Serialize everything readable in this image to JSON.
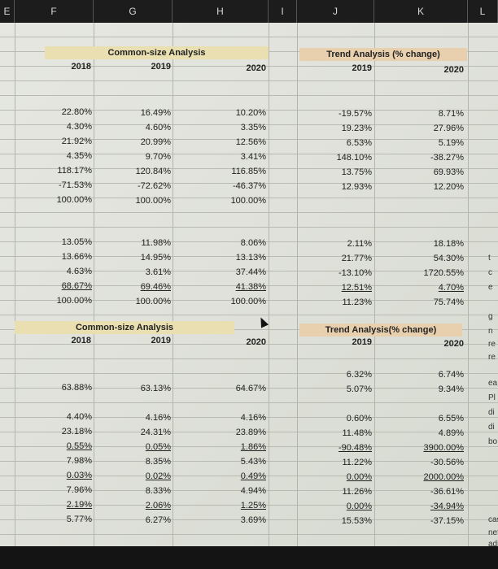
{
  "column_headers": [
    "E",
    "F",
    "G",
    "H",
    "I",
    "J",
    "K",
    "L"
  ],
  "section1": {
    "common_size_title": "Common-size Analysis",
    "trend_title": "Trend Analysis (% change)",
    "cs_years": [
      "2018",
      "2019",
      "2020"
    ],
    "trend_years": [
      "2019",
      "2020"
    ]
  },
  "section2": {
    "common_size_title": "Common-size Analysis",
    "trend_title": "Trend Analysis(% change)",
    "cs_years": [
      "2018",
      "2019",
      "2020"
    ],
    "trend_years": [
      "2019",
      "2020"
    ]
  },
  "rows_block1": [
    {
      "cells": [
        "22.80%",
        "16.49%",
        "10.20%",
        "-19.57%",
        "8.71%"
      ]
    },
    {
      "cells": [
        "4.30%",
        "4.60%",
        "3.35%",
        "19.23%",
        "27.96%"
      ]
    },
    {
      "cells": [
        "21.92%",
        "20.99%",
        "12.56%",
        "6.53%",
        "5.19%"
      ]
    },
    {
      "cells": [
        "4.35%",
        "9.70%",
        "3.41%",
        "148.10%",
        "-38.27%"
      ]
    },
    {
      "cells": [
        "118.17%",
        "120.84%",
        "116.85%",
        "13.75%",
        "69.93%"
      ]
    },
    {
      "cells": [
        "-71.53%",
        "-72.62%",
        "-46.37%",
        "12.93%",
        "12.20%"
      ]
    },
    {
      "cells": [
        "100.00%",
        "100.00%",
        "100.00%",
        "",
        ""
      ]
    }
  ],
  "rows_block2": [
    {
      "cells": [
        "13.05%",
        "11.98%",
        "8.06%",
        "2.11%",
        "18.18%"
      ]
    },
    {
      "cells": [
        "13.66%",
        "14.95%",
        "13.13%",
        "21.77%",
        "54.30%"
      ]
    },
    {
      "cells": [
        "4.63%",
        "3.61%",
        "37.44%",
        "-13.10%",
        "1720.55%"
      ]
    },
    {
      "cells": [
        "68.67%",
        "69.46%",
        "41.38%",
        "12.51%",
        "4.70%"
      ],
      "underlined": true
    },
    {
      "cells": [
        "100.00%",
        "100.00%",
        "100.00%",
        "11.23%",
        "75.74%"
      ]
    }
  ],
  "rows_block3": [
    {
      "cells": [
        "",
        "",
        "",
        "6.32%",
        "6.74%"
      ]
    },
    {
      "cells": [
        "63.88%",
        "63.13%",
        "64.67%",
        "5.07%",
        "9.34%"
      ]
    }
  ],
  "rows_block4": [
    {
      "cells": [
        "4.40%",
        "4.16%",
        "4.16%",
        "0.60%",
        "6.55%"
      ]
    },
    {
      "cells": [
        "23.18%",
        "24.31%",
        "23.89%",
        "11.48%",
        "4.89%"
      ]
    },
    {
      "cells": [
        "0.55%",
        "0.05%",
        "1.86%",
        "-90.48%",
        "3900.00%"
      ],
      "underlined": true
    },
    {
      "cells": [
        "7.98%",
        "8.35%",
        "5.43%",
        "11.22%",
        "-30.56%"
      ]
    },
    {
      "cells": [
        "0.03%",
        "0.02%",
        "0.49%",
        "0.00%",
        "2000.00%"
      ],
      "underlined": true
    },
    {
      "cells": [
        "7.96%",
        "8.33%",
        "4.94%",
        "11.26%",
        "-36.61%"
      ]
    },
    {
      "cells": [
        "2.19%",
        "2.06%",
        "1.25%",
        "0.00%",
        "-34.94%"
      ],
      "underlined": true
    },
    {
      "cells": [
        "5.77%",
        "6.27%",
        "3.69%",
        "15.53%",
        "-37.15%"
      ]
    }
  ],
  "column_l_fragments": [
    "t",
    "c",
    "e",
    "g",
    "n",
    "re",
    "re",
    "ea",
    "Pl",
    "di",
    "di",
    "bo",
    "cas",
    "net",
    "adi"
  ],
  "colors": {
    "common_size_band": "#e9dfb1",
    "trend_band": "#e8cfae",
    "header_bar": "#1c1c1c"
  }
}
